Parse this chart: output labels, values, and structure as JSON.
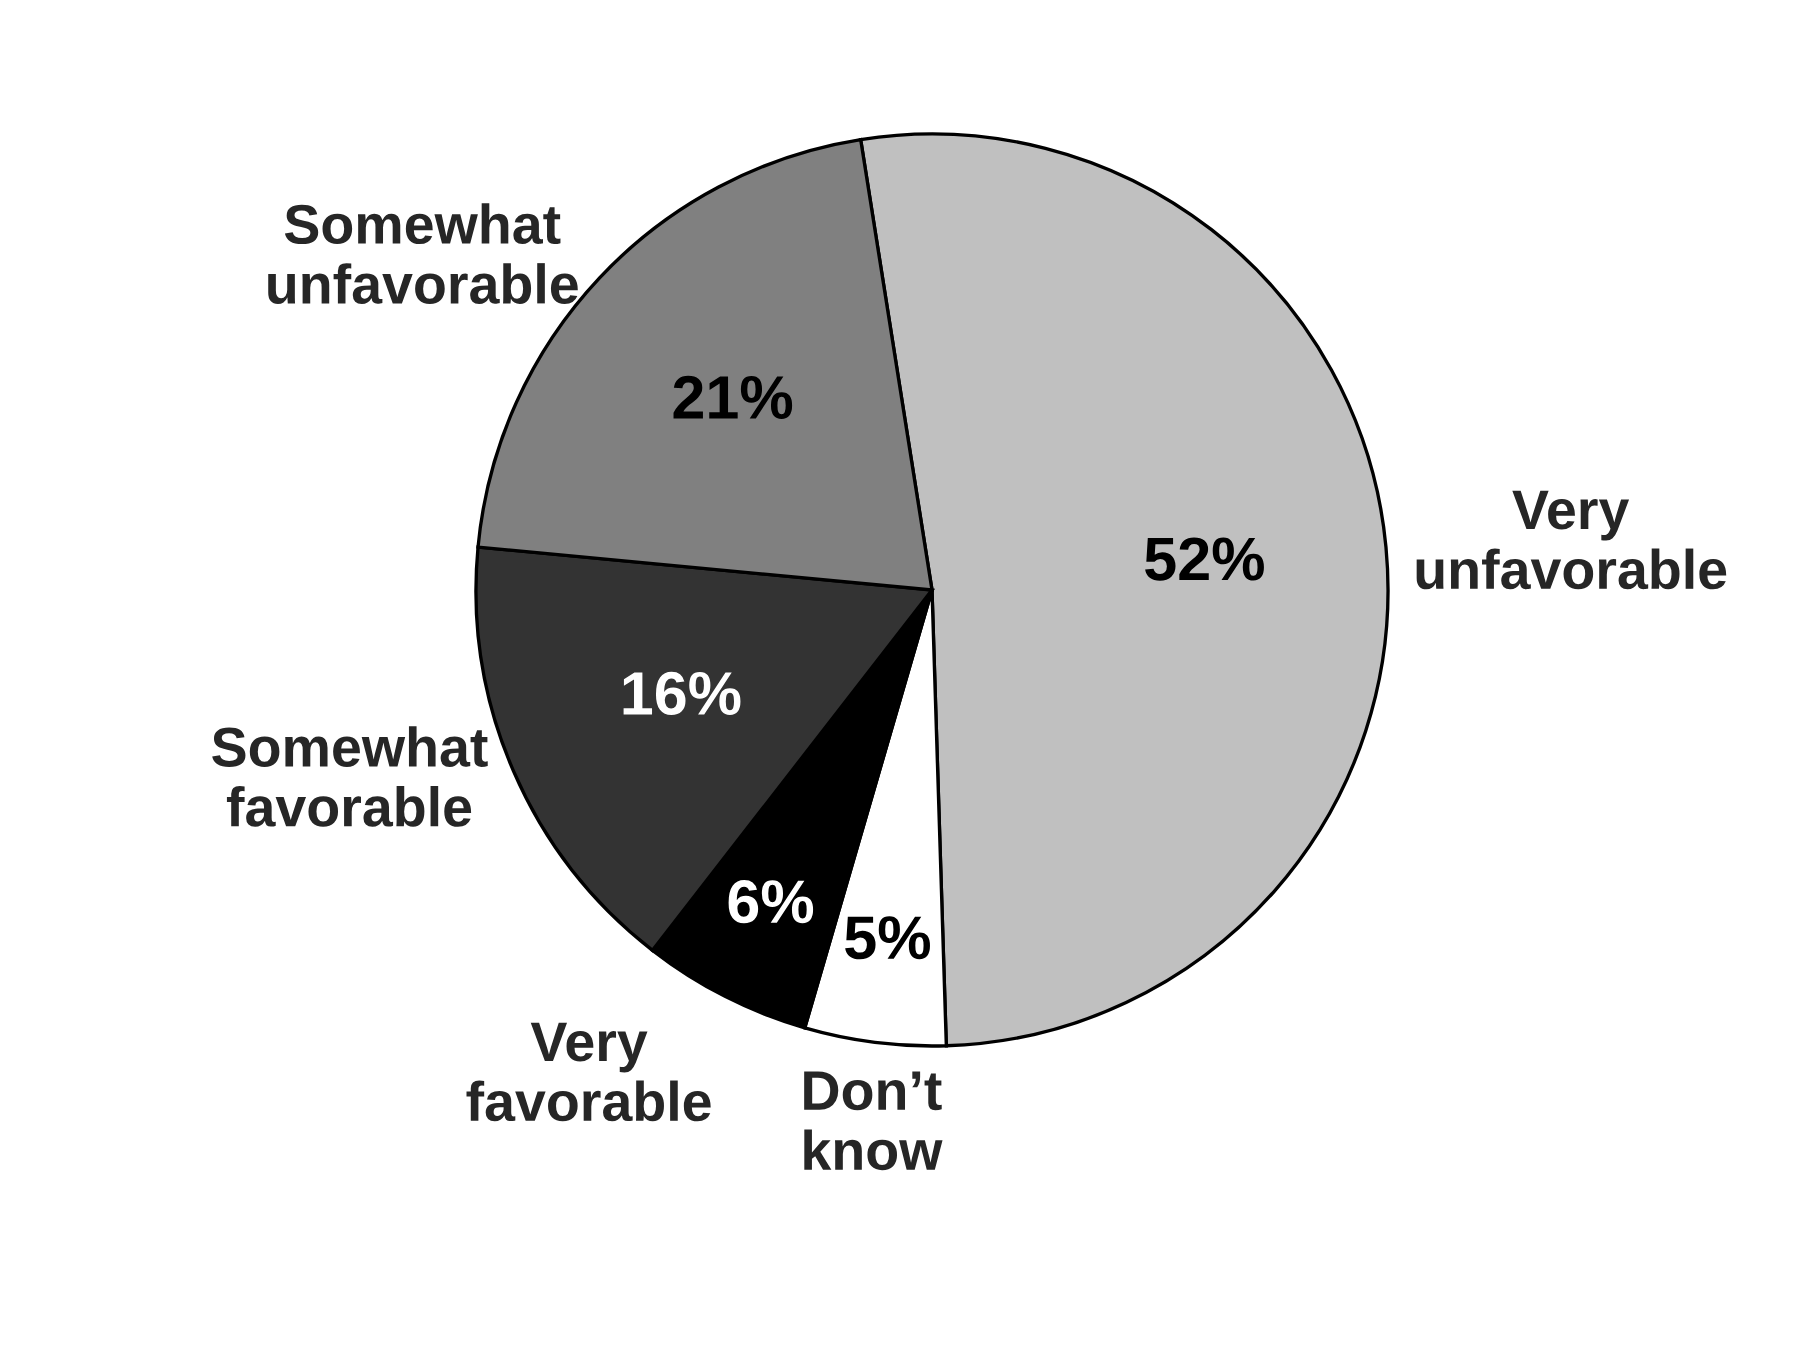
{
  "chart_data": {
    "type": "pie",
    "categories": [
      "Very\nunfavorable",
      "Don’t\nknow",
      "Very\nfavorable",
      "Somewhat\nfavorable",
      "Somewhat\nunfavorable"
    ],
    "values": [
      52,
      5,
      6,
      16,
      21
    ],
    "value_labels": [
      "52%",
      "5%",
      "6%",
      "16%",
      "21%"
    ],
    "colors": [
      "#c0c0c0",
      "#ffffff",
      "#000000",
      "#333333",
      "#808080"
    ],
    "legend": false
  }
}
